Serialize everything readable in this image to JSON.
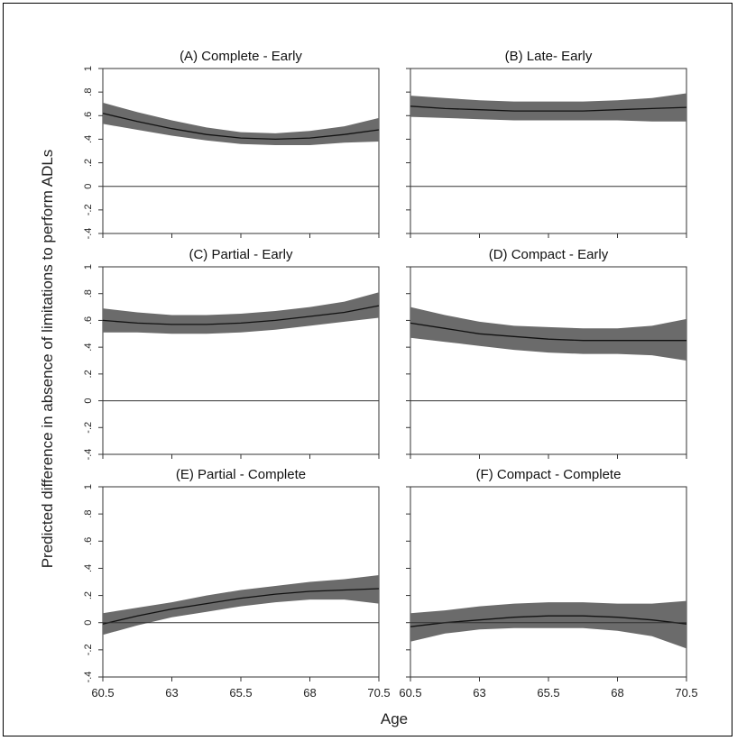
{
  "figure": {
    "ylabel": "Predicted difference in absence of limitations to perform ADLs",
    "xlabel": "Age"
  },
  "colors": {
    "band": "#6b6b6b",
    "line": "#111111",
    "axis": "#333333"
  },
  "chart_data": [
    {
      "type": "area",
      "title": "(A) Complete - Early",
      "ylim": [
        -0.4,
        1.0
      ],
      "xlim": [
        60.5,
        70.5
      ],
      "y_ticks": [
        "-.4",
        "-.2",
        "0",
        ".2",
        ".4",
        ".6",
        ".8",
        "1"
      ],
      "x_ticks": [],
      "reference_line": 0,
      "series": [
        {
          "x": [
            60.5,
            61.75,
            63,
            64.25,
            65.5,
            66.75,
            68,
            69.25,
            70.5
          ],
          "y": [
            0.62,
            0.55,
            0.49,
            0.44,
            0.41,
            0.4,
            0.41,
            0.44,
            0.48
          ],
          "lower": [
            0.53,
            0.48,
            0.43,
            0.39,
            0.36,
            0.35,
            0.35,
            0.37,
            0.38
          ],
          "upper": [
            0.71,
            0.63,
            0.56,
            0.5,
            0.46,
            0.45,
            0.47,
            0.51,
            0.58
          ]
        }
      ]
    },
    {
      "type": "area",
      "title": "(B) Late- Early",
      "ylim": [
        -0.4,
        1.0
      ],
      "xlim": [
        60.5,
        70.5
      ],
      "y_ticks": [],
      "x_ticks": [],
      "reference_line": 0,
      "series": [
        {
          "x": [
            60.5,
            61.75,
            63,
            64.25,
            65.5,
            66.75,
            68,
            69.25,
            70.5
          ],
          "y": [
            0.68,
            0.66,
            0.65,
            0.64,
            0.64,
            0.64,
            0.65,
            0.66,
            0.67
          ],
          "lower": [
            0.59,
            0.58,
            0.57,
            0.56,
            0.56,
            0.56,
            0.56,
            0.55,
            0.55
          ],
          "upper": [
            0.77,
            0.75,
            0.73,
            0.72,
            0.72,
            0.72,
            0.73,
            0.75,
            0.79
          ]
        }
      ]
    },
    {
      "type": "area",
      "title": "(C) Partial - Early",
      "ylim": [
        -0.4,
        1.0
      ],
      "xlim": [
        60.5,
        70.5
      ],
      "y_ticks": [
        "-.4",
        "-.2",
        "0",
        ".2",
        ".4",
        ".6",
        ".8",
        "1"
      ],
      "x_ticks": [],
      "reference_line": 0,
      "series": [
        {
          "x": [
            60.5,
            61.75,
            63,
            64.25,
            65.5,
            66.75,
            68,
            69.25,
            70.5
          ],
          "y": [
            0.6,
            0.58,
            0.57,
            0.57,
            0.58,
            0.6,
            0.63,
            0.66,
            0.71
          ],
          "lower": [
            0.51,
            0.51,
            0.5,
            0.5,
            0.51,
            0.53,
            0.56,
            0.59,
            0.62
          ],
          "upper": [
            0.69,
            0.66,
            0.64,
            0.64,
            0.65,
            0.67,
            0.7,
            0.74,
            0.81
          ]
        }
      ]
    },
    {
      "type": "area",
      "title": "(D) Compact - Early",
      "ylim": [
        -0.4,
        1.0
      ],
      "xlim": [
        60.5,
        70.5
      ],
      "y_ticks": [],
      "x_ticks": [],
      "reference_line": 0,
      "series": [
        {
          "x": [
            60.5,
            61.75,
            63,
            64.25,
            65.5,
            66.75,
            68,
            69.25,
            70.5
          ],
          "y": [
            0.58,
            0.54,
            0.5,
            0.48,
            0.46,
            0.45,
            0.45,
            0.45,
            0.45
          ],
          "lower": [
            0.47,
            0.44,
            0.41,
            0.38,
            0.36,
            0.35,
            0.35,
            0.34,
            0.3
          ],
          "upper": [
            0.7,
            0.64,
            0.59,
            0.56,
            0.55,
            0.54,
            0.54,
            0.56,
            0.61
          ]
        }
      ]
    },
    {
      "type": "area",
      "title": "(E) Partial - Complete",
      "ylim": [
        -0.4,
        1.0
      ],
      "xlim": [
        60.5,
        70.5
      ],
      "y_ticks": [
        "-.4",
        "-.2",
        "0",
        ".2",
        ".4",
        ".6",
        ".8",
        "1"
      ],
      "x_ticks": [
        "60.5",
        "63",
        "65.5",
        "68",
        "70.5"
      ],
      "reference_line": 0,
      "series": [
        {
          "x": [
            60.5,
            61.75,
            63,
            64.25,
            65.5,
            66.75,
            68,
            69.25,
            70.5
          ],
          "y": [
            -0.01,
            0.05,
            0.1,
            0.14,
            0.18,
            0.21,
            0.23,
            0.24,
            0.25
          ],
          "lower": [
            -0.09,
            -0.02,
            0.04,
            0.08,
            0.12,
            0.15,
            0.17,
            0.17,
            0.14
          ],
          "upper": [
            0.07,
            0.11,
            0.15,
            0.2,
            0.24,
            0.27,
            0.3,
            0.32,
            0.35
          ]
        }
      ]
    },
    {
      "type": "area",
      "title": "(F) Compact - Complete",
      "ylim": [
        -0.4,
        1.0
      ],
      "xlim": [
        60.5,
        70.5
      ],
      "y_ticks": [],
      "x_ticks": [
        "60.5",
        "63",
        "65.5",
        "68",
        "70.5"
      ],
      "reference_line": 0,
      "series": [
        {
          "x": [
            60.5,
            61.75,
            63,
            64.25,
            65.5,
            66.75,
            68,
            69.25,
            70.5
          ],
          "y": [
            -0.03,
            0.0,
            0.02,
            0.04,
            0.05,
            0.05,
            0.04,
            0.02,
            -0.01
          ],
          "lower": [
            -0.14,
            -0.08,
            -0.05,
            -0.04,
            -0.04,
            -0.04,
            -0.06,
            -0.1,
            -0.19
          ],
          "upper": [
            0.07,
            0.09,
            0.12,
            0.14,
            0.15,
            0.15,
            0.14,
            0.14,
            0.16
          ]
        }
      ]
    }
  ]
}
